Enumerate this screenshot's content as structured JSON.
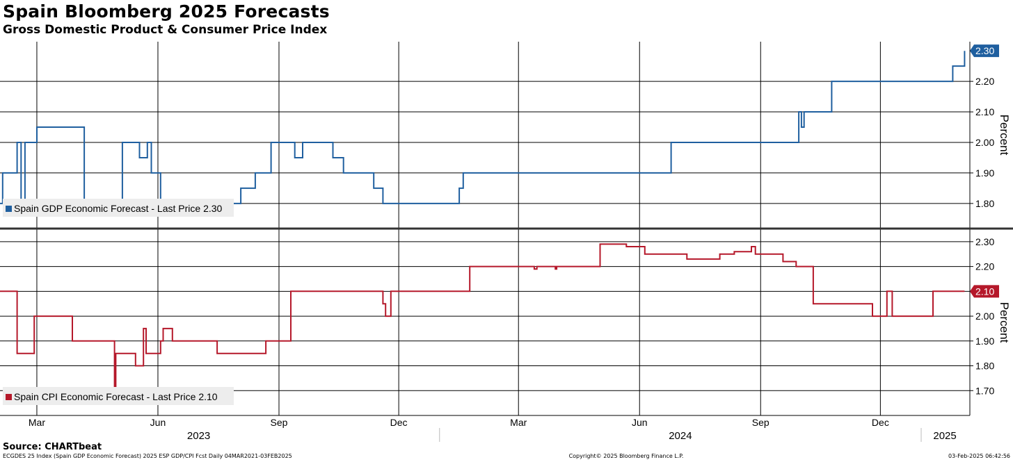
{
  "title": "Spain Bloomberg 2025 Forecasts",
  "subtitle": "Gross Domestic Product & Consumer Price Index",
  "source": "Source: CHARTbeat",
  "footer": {
    "left": "ECGDES 25 Index (Spain GDP Economic Forecast) 2025 ESP GDP/CPI Fcst  Daily 04MAR2021-03FEB2025",
    "center": "Copyright© 2025 Bloomberg Finance L.P.",
    "right": "03-Feb-2025 06:42:56"
  },
  "colors": {
    "gdp": "#1f5f9f",
    "cpi": "#b5182a",
    "grid": "#000000"
  },
  "chart_data": [
    {
      "type": "line",
      "name": "gdp-panel",
      "ylabel": "Percent",
      "ylim": [
        1.72,
        2.33
      ],
      "yticks": [
        1.8,
        1.9,
        2.0,
        2.1,
        2.2
      ],
      "yticklabels": [
        "1.80",
        "1.90",
        "2.00",
        "2.10",
        "2.20"
      ],
      "last_label": "2.30",
      "legend": "Spain GDP Economic Forecast - Last Price 2.30",
      "legend_position": "bottom-left",
      "series": [
        {
          "name": "Spain GDP Economic Forecast",
          "step": true,
          "x": [
            "2023-02-01",
            "2023-02-03",
            "2023-02-09",
            "2023-02-14",
            "2023-02-17",
            "2023-02-20",
            "2023-02-27",
            "2023-03-01",
            "2023-04-06",
            "2023-04-08",
            "2023-05-05",
            "2023-05-07",
            "2023-05-18",
            "2023-05-24",
            "2023-05-27",
            "2023-06-03",
            "2023-08-03",
            "2023-08-14",
            "2023-08-26",
            "2023-09-13",
            "2023-09-19",
            "2023-10-12",
            "2023-10-20",
            "2023-11-12",
            "2023-11-16",
            "2023-11-19",
            "2023-11-21",
            "2023-11-24",
            "2023-11-29",
            "2023-12-04",
            "2024-01-16",
            "2024-01-19",
            "2024-01-31",
            "2024-01-31",
            "2024-06-25",
            "2024-06-28",
            "2024-09-27",
            "2024-09-30",
            "2024-10-02",
            "2024-10-04",
            "2024-10-05",
            "2024-10-25",
            "2024-10-29",
            "2024-12-05",
            "2024-12-08",
            "2024-12-29",
            "2024-12-31",
            "2025-01-05",
            "2025-01-06",
            "2025-01-11",
            "2025-01-14",
            "2025-01-25",
            "2025-01-26",
            "2025-02-03"
          ],
          "values": [
            1.8,
            1.9,
            1.9,
            2.0,
            1.8,
            2.0,
            2.0,
            2.05,
            1.8,
            1.8,
            2.0,
            2.0,
            1.95,
            2.0,
            1.9,
            1.8,
            1.85,
            1.9,
            2.0,
            1.95,
            2.0,
            1.95,
            1.9,
            1.85,
            1.85,
            1.8,
            1.8,
            1.8,
            1.8,
            1.8,
            1.85,
            1.9,
            1.9,
            1.9,
            2.0,
            2.0,
            2.0,
            2.1,
            2.05,
            2.1,
            2.1,
            2.2,
            2.2,
            2.2,
            2.2,
            2.2,
            2.2,
            2.2,
            2.2,
            2.2,
            2.2,
            2.25,
            2.25,
            2.3
          ]
        }
      ]
    },
    {
      "type": "line",
      "name": "cpi-panel",
      "ylabel": "Percent",
      "ylim": [
        1.6,
        2.35
      ],
      "yticks": [
        1.7,
        1.8,
        1.9,
        2.0,
        2.1,
        2.2,
        2.3
      ],
      "yticklabels": [
        "1.70",
        "1.80",
        "1.90",
        "2.00",
        "2.10",
        "2.20",
        "2.30"
      ],
      "last_label": "2.10",
      "legend": "Spain CPI Economic Forecast - Last Price 2.10",
      "legend_position": "bottom-left",
      "series": [
        {
          "name": "Spain CPI Economic Forecast",
          "step": true,
          "x": [
            "2023-02-01",
            "2023-02-14",
            "2023-02-27",
            "2023-03-28",
            "2023-04-29",
            "2023-04-30",
            "2023-05-02",
            "2023-05-15",
            "2023-05-20",
            "2023-05-21",
            "2023-05-23",
            "2023-06-03",
            "2023-06-05",
            "2023-06-12",
            "2023-06-18",
            "2023-07-16",
            "2023-08-22",
            "2023-09-10",
            "2023-09-18",
            "2023-09-19",
            "2023-11-19",
            "2023-11-21",
            "2023-11-25",
            "2023-12-27",
            "2024-01-24",
            "2024-02-16",
            "2024-02-23",
            "2024-03-13",
            "2024-03-15",
            "2024-03-29",
            "2024-03-30",
            "2024-04-02",
            "2024-04-08",
            "2024-05-02",
            "2024-05-22",
            "2024-05-24",
            "2024-06-05",
            "2024-06-07",
            "2024-06-12",
            "2024-06-15",
            "2024-06-20",
            "2024-07-07",
            "2024-07-12",
            "2024-08-01",
            "2024-08-10",
            "2024-08-12",
            "2024-08-25",
            "2024-08-28",
            "2024-09-01",
            "2024-09-05",
            "2024-09-07",
            "2024-09-08",
            "2024-09-10",
            "2024-09-18",
            "2024-09-28",
            "2024-10-01",
            "2024-10-11",
            "2024-11-25",
            "2024-12-06",
            "2024-12-10",
            "2024-12-12",
            "2025-01-10",
            "2025-02-03"
          ],
          "values": [
            2.1,
            1.85,
            2.0,
            1.9,
            1.7,
            1.85,
            1.85,
            1.8,
            1.8,
            1.95,
            1.85,
            1.9,
            1.95,
            1.9,
            1.9,
            1.85,
            1.9,
            2.1,
            2.1,
            2.1,
            2.05,
            2.0,
            2.1,
            2.1,
            2.2,
            2.2,
            2.2,
            2.19,
            2.2,
            2.19,
            2.2,
            2.2,
            2.2,
            2.29,
            2.28,
            2.28,
            2.25,
            2.25,
            2.25,
            2.25,
            2.25,
            2.23,
            2.23,
            2.25,
            2.25,
            2.26,
            2.28,
            2.25,
            2.25,
            2.25,
            2.25,
            2.25,
            2.25,
            2.22,
            2.2,
            2.2,
            2.05,
            2.0,
            2.1,
            2.0,
            2.0,
            2.1,
            2.1
          ]
        }
      ]
    }
  ],
  "x_axis": {
    "start": "2023-02-01",
    "end": "2025-02-07",
    "month_ticks": [
      "Mar",
      "Jun",
      "Sep",
      "Dec",
      "Mar",
      "Jun",
      "Sep",
      "Dec"
    ],
    "month_tick_dates": [
      "2023-03-01",
      "2023-06-01",
      "2023-09-01",
      "2023-12-01",
      "2024-03-01",
      "2024-06-01",
      "2024-09-01",
      "2024-12-01"
    ],
    "year_labels": [
      "2023",
      "2024",
      "2025"
    ],
    "year_dates": [
      "2023-07-02",
      "2024-07-02",
      "2025-01-19"
    ]
  }
}
